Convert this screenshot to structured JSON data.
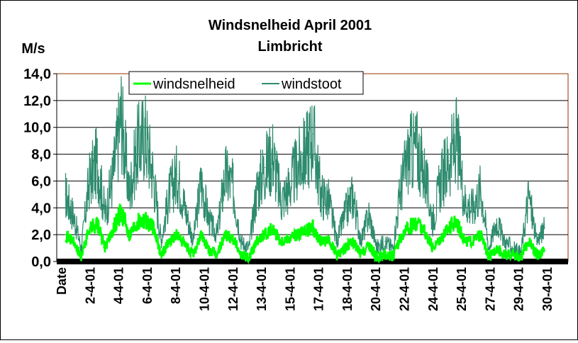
{
  "chart_data": {
    "type": "line",
    "title": "Windsnelheid April 2001",
    "subtitle": "Limbricht",
    "ylabel": "M/s",
    "ylim": [
      0,
      14
    ],
    "yticks": [
      "0,0",
      "2,0",
      "4,0",
      "6,0",
      "8,0",
      "10,0",
      "12,0",
      "14,0"
    ],
    "ytick_values": [
      0,
      2,
      4,
      6,
      8,
      10,
      12,
      14
    ],
    "xlabel": "",
    "xticks": [
      "Date",
      "2-4-01",
      "4-4-01",
      "6-4-01",
      "8-4-01",
      "10-4-01",
      "12-4-01",
      "13-4-01",
      "15-4-01",
      "17-4-01",
      "18-4-01",
      "20-4-01",
      "22-4-01",
      "24-4-01",
      "25-4-01",
      "27-4-01",
      "29-4-01",
      "30-4-01"
    ],
    "x_range_days": [
      1,
      31
    ],
    "grid": "horizontal",
    "legend_position": "top-left",
    "colors": {
      "windsnelheid": "#00ff00",
      "windstoot": "#2e8b6e",
      "plot_border": "#993300",
      "baseline": "#000000"
    },
    "series": [
      {
        "name": "windsnelheid",
        "x": [
          1.0,
          1.5,
          2.0,
          2.5,
          3.0,
          3.5,
          4.0,
          4.5,
          5.0,
          5.5,
          6.0,
          6.5,
          7.0,
          7.5,
          8.0,
          8.5,
          9.0,
          9.5,
          10.0,
          10.5,
          11.0,
          11.5,
          12.0,
          12.5,
          13.0,
          13.5,
          14.0,
          14.5,
          15.0,
          15.5,
          16.0,
          16.5,
          17.0,
          17.5,
          18.0,
          18.5,
          19.0,
          19.5,
          20.0,
          20.5,
          21.0,
          21.5,
          22.0,
          22.5,
          23.0,
          23.5,
          24.0,
          24.5,
          25.0,
          25.5,
          26.0,
          26.5,
          27.0,
          27.5,
          28.0,
          28.5,
          29.0,
          29.5,
          30.0,
          30.5,
          31.0
        ],
        "values": [
          2.0,
          1.5,
          0.3,
          2.5,
          2.8,
          1.0,
          2.5,
          3.8,
          2.0,
          3.0,
          3.2,
          2.5,
          0.5,
          1.5,
          2.0,
          1.2,
          0.5,
          2.0,
          0.8,
          0.5,
          2.0,
          1.8,
          0.5,
          0.3,
          1.5,
          2.0,
          2.5,
          1.5,
          1.8,
          2.0,
          2.2,
          2.5,
          1.5,
          1.5,
          0.5,
          1.0,
          1.5,
          0.5,
          1.2,
          0.3,
          0.5,
          0.4,
          1.8,
          2.5,
          3.0,
          2.2,
          1.0,
          1.8,
          2.5,
          3.0,
          1.5,
          1.5,
          2.0,
          0.3,
          1.0,
          0.5,
          0.5,
          0.3,
          1.5,
          0.5,
          0.8
        ]
      },
      {
        "name": "windstoot",
        "x": [
          1.0,
          1.5,
          2.0,
          2.5,
          3.0,
          3.5,
          4.0,
          4.5,
          5.0,
          5.5,
          6.0,
          6.5,
          7.0,
          7.5,
          8.0,
          8.5,
          9.0,
          9.5,
          10.0,
          10.5,
          11.0,
          11.5,
          12.0,
          12.5,
          13.0,
          13.5,
          14.0,
          14.5,
          15.0,
          15.5,
          16.0,
          16.5,
          17.0,
          17.5,
          18.0,
          18.5,
          19.0,
          19.5,
          20.0,
          20.5,
          21.0,
          21.5,
          22.0,
          22.5,
          23.0,
          23.5,
          24.0,
          24.5,
          25.0,
          25.5,
          26.0,
          26.5,
          27.0,
          27.5,
          28.0,
          28.5,
          29.0,
          29.5,
          30.0,
          30.5,
          31.0
        ],
        "values": [
          5.0,
          3.5,
          1.0,
          6.0,
          7.5,
          3.5,
          6.5,
          11.0,
          5.0,
          8.5,
          9.5,
          6.5,
          1.5,
          5.0,
          6.5,
          4.0,
          1.5,
          6.0,
          3.0,
          2.0,
          6.5,
          5.5,
          1.5,
          1.0,
          5.5,
          7.0,
          8.0,
          4.5,
          5.5,
          7.0,
          8.0,
          9.5,
          5.0,
          4.5,
          1.5,
          3.5,
          5.0,
          1.5,
          3.5,
          1.0,
          1.5,
          1.0,
          5.5,
          8.0,
          8.5,
          6.5,
          3.0,
          6.0,
          7.5,
          9.0,
          4.5,
          4.0,
          5.5,
          1.0,
          3.0,
          1.5,
          1.0,
          0.5,
          5.0,
          1.5,
          2.5
        ]
      }
    ]
  }
}
